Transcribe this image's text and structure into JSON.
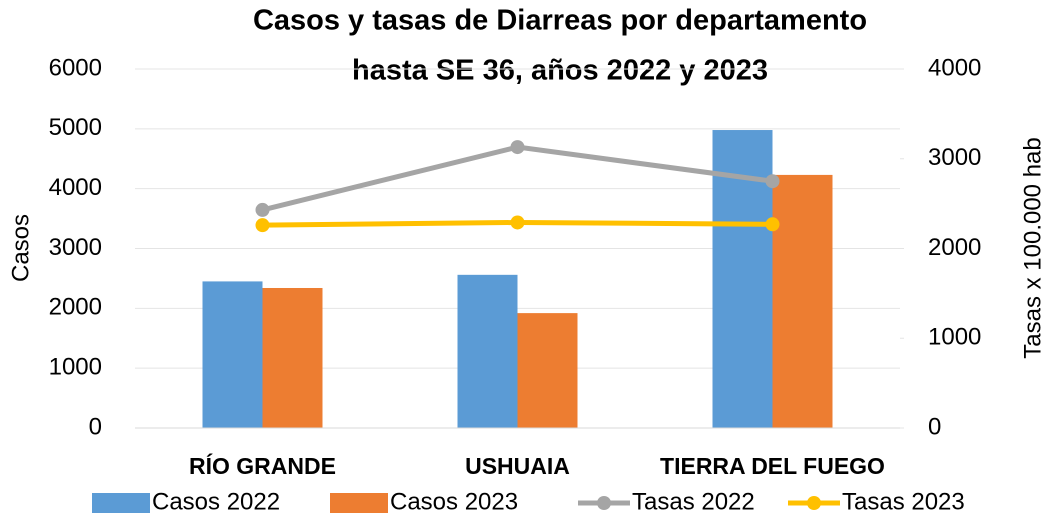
{
  "chart_data": {
    "type": "bar",
    "title": [
      "Casos y tasas de Diarreas por departamento",
      "hasta SE 36, años 2022 y 2023"
    ],
    "ylabel": "Casos",
    "y2label": "Tasas x 100.000 hab",
    "categories": [
      "RÍO GRANDE",
      "USHUAIA",
      "TIERRA DEL FUEGO"
    ],
    "series": [
      {
        "name": "Casos 2022",
        "type": "bar",
        "color": "#5b9bd5",
        "values": [
          2450,
          2560,
          4980
        ]
      },
      {
        "name": "Casos 2023",
        "type": "bar",
        "color": "#ed7d31",
        "values": [
          2340,
          1920,
          4230
        ]
      },
      {
        "name": "Tasas 2022",
        "type": "line",
        "axis": "y2",
        "color": "#a5a5a5",
        "values": [
          2430,
          3130,
          2750
        ]
      },
      {
        "name": "Tasas 2023",
        "type": "line",
        "axis": "y2",
        "color": "#ffc000",
        "values": [
          2260,
          2290,
          2270
        ]
      }
    ],
    "ylim": [
      0,
      6000
    ],
    "yticks": [
      0,
      1000,
      2000,
      3000,
      4000,
      5000,
      6000
    ],
    "y2lim": [
      0,
      4000
    ],
    "y2ticks": [
      0,
      1000,
      2000,
      3000,
      4000
    ],
    "grid": true,
    "legend": "bottom"
  }
}
